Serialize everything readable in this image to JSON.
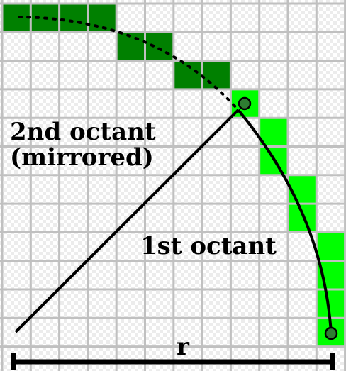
{
  "labels": {
    "second_octant_line1": "2nd octant",
    "second_octant_line2": "(mirrored)",
    "first_octant": "1st octant",
    "radius": "r"
  },
  "grid": {
    "columns": 12,
    "rows": 12,
    "line_color": "#c0c0c0",
    "checker_color": "#ececec"
  },
  "pixels": {
    "first_octant": {
      "color": "#00ff00",
      "cells": [
        [
          8,
          3
        ],
        [
          9,
          4
        ],
        [
          9,
          5
        ],
        [
          10,
          6
        ],
        [
          10,
          7
        ],
        [
          11,
          8
        ],
        [
          11,
          9
        ],
        [
          11,
          10
        ],
        [
          11,
          11
        ]
      ]
    },
    "second_octant": {
      "color": "#008000",
      "cells": [
        [
          0,
          0
        ],
        [
          1,
          0
        ],
        [
          2,
          0
        ],
        [
          3,
          0
        ],
        [
          4,
          1
        ],
        [
          5,
          1
        ],
        [
          6,
          2
        ],
        [
          7,
          2
        ]
      ]
    }
  },
  "colors": {
    "ink": "#000000",
    "point_fill": "#2e7d32"
  }
}
